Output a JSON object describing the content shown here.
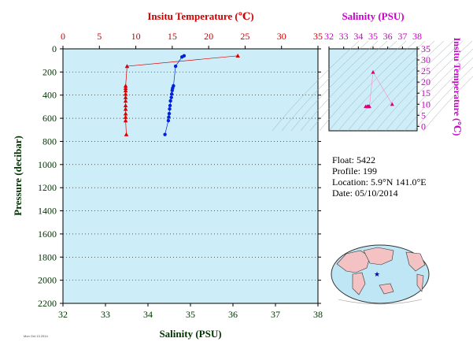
{
  "chart_data": [
    {
      "type": "scatter",
      "top_axis": {
        "label": "Insitu Temperature (℃)",
        "range": [
          0,
          35
        ],
        "ticks": [
          "0",
          "5",
          "10",
          "15",
          "20",
          "25",
          "30",
          "35"
        ],
        "color": "#cc0000"
      },
      "bottom_axis": {
        "label": "Salinity (PSU)",
        "range": [
          32,
          38
        ],
        "ticks": [
          "32",
          "33",
          "34",
          "35",
          "36",
          "37",
          "38"
        ],
        "color": "#003300"
      },
      "left_axis": {
        "label": "Pressure (decibar)",
        "range": [
          0,
          2200
        ],
        "inverted": true,
        "ticks": [
          "0",
          "200",
          "400",
          "600",
          "800",
          "1000",
          "1200",
          "1400",
          "1600",
          "1800",
          "2000",
          "2200"
        ],
        "color": "#003300"
      },
      "background": "#cdeef8",
      "series": [
        {
          "axis": "temperature",
          "color": "#dd0000",
          "marker": "triangle",
          "points": [
            [
              24.0,
              60
            ],
            [
              8.8,
              150
            ],
            [
              8.6,
              320
            ],
            [
              8.6,
              340
            ],
            [
              8.6,
              360
            ],
            [
              8.6,
              390
            ],
            [
              8.6,
              420
            ],
            [
              8.6,
              450
            ],
            [
              8.6,
              490
            ],
            [
              8.6,
              520
            ],
            [
              8.6,
              560
            ],
            [
              8.6,
              590
            ],
            [
              8.6,
              620
            ],
            [
              8.7,
              740
            ]
          ]
        },
        {
          "axis": "salinity",
          "color": "#0022dd",
          "marker": "circle",
          "points": [
            [
              34.85,
              60
            ],
            [
              34.8,
              70
            ],
            [
              34.65,
              150
            ],
            [
              34.6,
              320
            ],
            [
              34.58,
              340
            ],
            [
              34.57,
              360
            ],
            [
              34.56,
              390
            ],
            [
              34.55,
              420
            ],
            [
              34.53,
              450
            ],
            [
              34.52,
              490
            ],
            [
              34.51,
              520
            ],
            [
              34.5,
              560
            ],
            [
              34.49,
              590
            ],
            [
              34.48,
              620
            ],
            [
              34.4,
              740
            ]
          ]
        }
      ]
    },
    {
      "type": "scatter",
      "top_axis": {
        "label": "Salinity (PSU)",
        "range": [
          32,
          38
        ],
        "ticks": [
          "32",
          "33",
          "34",
          "35",
          "36",
          "37",
          "38"
        ],
        "color": "#cc00cc"
      },
      "right_axis": {
        "label": "Insitu Temperature (℃)",
        "range": [
          -2,
          35
        ],
        "ticks": [
          "0",
          "5",
          "10",
          "15",
          "20",
          "25",
          "30",
          "35"
        ],
        "color": "#cc00cc"
      },
      "background": "#cdeef8",
      "series": [
        {
          "color": "#dd0077",
          "marker": "triangle",
          "points": [
            [
              34.5,
              9.0
            ],
            [
              34.6,
              9.0
            ],
            [
              34.65,
              9.0
            ],
            [
              34.7,
              9.0
            ],
            [
              34.75,
              9.0
            ],
            [
              35.0,
              24.5
            ],
            [
              36.3,
              10.0
            ]
          ]
        }
      ]
    }
  ],
  "info": {
    "float": "Float:  5422",
    "profile": "Profile:  199",
    "location": "Location:  5.9°N  141.0°E",
    "date": "Date:  05/10/2014"
  },
  "map": {
    "marker": "★"
  },
  "stamp": "Mon Oct 13 2014"
}
